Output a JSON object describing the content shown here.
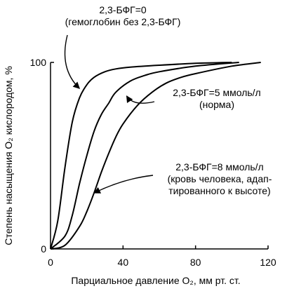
{
  "chart_data": {
    "type": "line",
    "title": "",
    "xlabel": "Парциальное давление O₂, мм рт. ст.",
    "ylabel": "Степень насыщения O₂ кислородом, %",
    "xlim": [
      0,
      120
    ],
    "ylim": [
      0,
      100
    ],
    "x_ticks": [
      "0",
      "40",
      "80",
      "120"
    ],
    "y_ticks": [
      "0",
      "100"
    ],
    "grid": false,
    "series": [
      {
        "name": "2,3-БФГ=0 (гемоглобин без 2,3-БФГ)",
        "x": [
          0,
          4,
          8,
          12,
          16,
          20,
          24,
          30,
          36,
          44,
          60,
          80,
          100
        ],
        "y": [
          0,
          15,
          44,
          68,
          81,
          88,
          92,
          95,
          96.5,
          97.5,
          98.5,
          99.5,
          100
        ]
      },
      {
        "name": "2,3-БФГ=5 ммоль/л (норма)",
        "x": [
          0,
          8,
          12,
          16,
          20,
          24,
          28,
          32,
          36,
          44,
          52,
          60,
          80,
          104
        ],
        "y": [
          0,
          7,
          18,
          35,
          50,
          63,
          72,
          78,
          84,
          90,
          93,
          95,
          98,
          100
        ]
      },
      {
        "name": "2,3-БФГ=8 ммоль/л (кровь человека, адаптированного к высоте)",
        "x": [
          0,
          8,
          16,
          20,
          24,
          28,
          32,
          36,
          40,
          48,
          56,
          64,
          72,
          80,
          100,
          116
        ],
        "y": [
          0,
          2,
          12,
          20,
          30,
          41,
          51,
          60,
          67,
          77,
          84,
          89,
          92,
          94,
          98,
          100
        ]
      }
    ],
    "annotations": [
      {
        "series": 0,
        "lines": [
          "2,3-БФГ=0",
          "(гемоглобин без 2,3-БФГ)"
        ],
        "arrow_to": [
          16,
          86
        ]
      },
      {
        "series": 1,
        "lines": [
          "2,3-БФГ=5 ммоль/л",
          "(норма)"
        ],
        "arrow_to": [
          42,
          82
        ]
      },
      {
        "series": 2,
        "lines": [
          "2,3-БФГ=8 ммоль/л",
          "(кровь человека, адап-",
          "тированного к высоте)"
        ],
        "arrow_to": [
          24,
          30
        ]
      }
    ]
  }
}
